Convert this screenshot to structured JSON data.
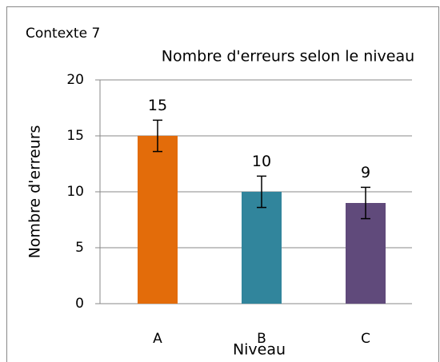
{
  "chart_data": {
    "type": "bar",
    "annotation": "Contexte 7",
    "title": "Nombre d'erreurs selon le niveau",
    "x_label": "Niveau",
    "y_label": "Nombre d'erreurs",
    "categories": [
      "A",
      "B",
      "C"
    ],
    "values": [
      15,
      10,
      9
    ],
    "errors": [
      1.4,
      1.4,
      1.4
    ],
    "colors": [
      "#e36c0a",
      "#31859c",
      "#604a7b"
    ],
    "ylim": [
      0,
      20
    ],
    "yticks": [
      0,
      5,
      10,
      15,
      20
    ],
    "grid": true
  }
}
